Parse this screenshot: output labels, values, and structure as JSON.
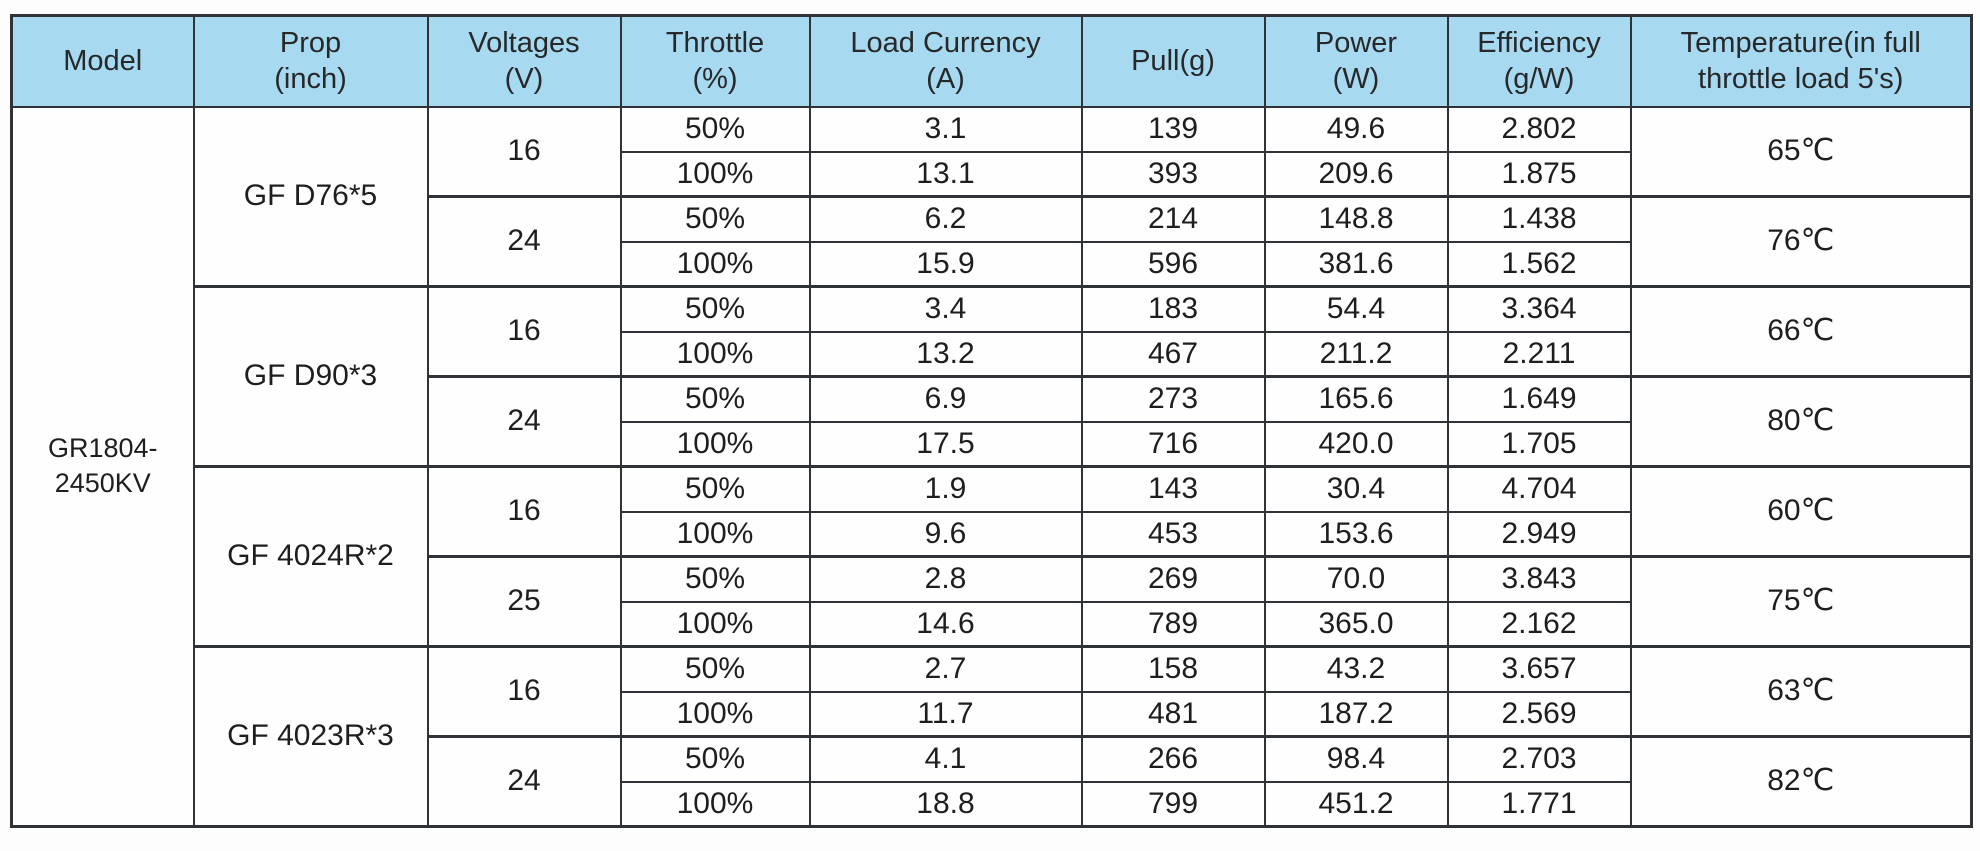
{
  "table": {
    "header_bg": "#a7d9f0",
    "border_color": "#2f3337",
    "headers": [
      {
        "line1": "Model",
        "line2": ""
      },
      {
        "line1": "Prop",
        "line2": "(inch)"
      },
      {
        "line1": "Voltages",
        "line2": "(V)"
      },
      {
        "line1": "Throttle",
        "line2": "(%)"
      },
      {
        "line1": "Load Currency",
        "line2": "(A)"
      },
      {
        "line1": "Pull(g)",
        "line2": ""
      },
      {
        "line1": "Power",
        "line2": "(W)"
      },
      {
        "line1": "Efficiency",
        "line2": "(g/W)"
      },
      {
        "line1": "Temperature(in full",
        "line2": "throttle load 5's)"
      }
    ],
    "model": {
      "line1": "GR1804-",
      "line2": "2450KV"
    },
    "groups": [
      {
        "prop": "GF D76*5",
        "voltages": [
          {
            "volts": "16",
            "temperature": "65℃",
            "rows": [
              {
                "throttle": "50%",
                "load_current": "3.1",
                "pull": "139",
                "power": "49.6",
                "efficiency": "2.802"
              },
              {
                "throttle": "100%",
                "load_current": "13.1",
                "pull": "393",
                "power": "209.6",
                "efficiency": "1.875"
              }
            ]
          },
          {
            "volts": "24",
            "temperature": "76℃",
            "rows": [
              {
                "throttle": "50%",
                "load_current": "6.2",
                "pull": "214",
                "power": "148.8",
                "efficiency": "1.438"
              },
              {
                "throttle": "100%",
                "load_current": "15.9",
                "pull": "596",
                "power": "381.6",
                "efficiency": "1.562"
              }
            ]
          }
        ]
      },
      {
        "prop": "GF D90*3",
        "voltages": [
          {
            "volts": "16",
            "temperature": "66℃",
            "rows": [
              {
                "throttle": "50%",
                "load_current": "3.4",
                "pull": "183",
                "power": "54.4",
                "efficiency": "3.364"
              },
              {
                "throttle": "100%",
                "load_current": "13.2",
                "pull": "467",
                "power": "211.2",
                "efficiency": "2.211"
              }
            ]
          },
          {
            "volts": "24",
            "temperature": "80℃",
            "rows": [
              {
                "throttle": "50%",
                "load_current": "6.9",
                "pull": "273",
                "power": "165.6",
                "efficiency": "1.649"
              },
              {
                "throttle": "100%",
                "load_current": "17.5",
                "pull": "716",
                "power": "420.0",
                "efficiency": "1.705"
              }
            ]
          }
        ]
      },
      {
        "prop": "GF 4024R*2",
        "voltages": [
          {
            "volts": "16",
            "temperature": "60℃",
            "rows": [
              {
                "throttle": "50%",
                "load_current": "1.9",
                "pull": "143",
                "power": "30.4",
                "efficiency": "4.704"
              },
              {
                "throttle": "100%",
                "load_current": "9.6",
                "pull": "453",
                "power": "153.6",
                "efficiency": "2.949"
              }
            ]
          },
          {
            "volts": "25",
            "temperature": "75℃",
            "rows": [
              {
                "throttle": "50%",
                "load_current": "2.8",
                "pull": "269",
                "power": "70.0",
                "efficiency": "3.843"
              },
              {
                "throttle": "100%",
                "load_current": "14.6",
                "pull": "789",
                "power": "365.0",
                "efficiency": "2.162"
              }
            ]
          }
        ]
      },
      {
        "prop": "GF 4023R*3",
        "voltages": [
          {
            "volts": "16",
            "temperature": "63℃",
            "rows": [
              {
                "throttle": "50%",
                "load_current": "2.7",
                "pull": "158",
                "power": "43.2",
                "efficiency": "3.657"
              },
              {
                "throttle": "100%",
                "load_current": "11.7",
                "pull": "481",
                "power": "187.2",
                "efficiency": "2.569"
              }
            ]
          },
          {
            "volts": "24",
            "temperature": "82℃",
            "rows": [
              {
                "throttle": "50%",
                "load_current": "4.1",
                "pull": "266",
                "power": "98.4",
                "efficiency": "2.703"
              },
              {
                "throttle": "100%",
                "load_current": "18.8",
                "pull": "799",
                "power": "451.2",
                "efficiency": "1.771"
              }
            ]
          }
        ]
      }
    ]
  }
}
